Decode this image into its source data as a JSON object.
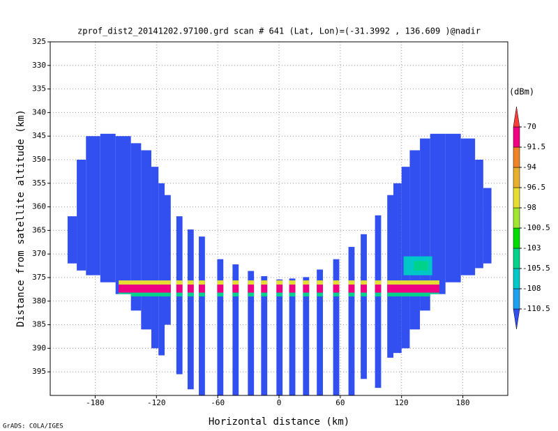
{
  "chart_data": {
    "type": "profile",
    "title": "zprof_dist2_20141202.97100.grd  scan # 641  (Lat, Lon)=(-31.3992 , 136.609 )@nadir",
    "xlabel": "Horizontal distance (km)",
    "ylabel": "Distance from satellite altitude (km)",
    "footer": "GrADS: COLA/IGES",
    "xlim": [
      -224,
      224
    ],
    "ylim": [
      325,
      400
    ],
    "xticks": [
      -180,
      -120,
      -60,
      0,
      60,
      120,
      180
    ],
    "yticks": [
      325,
      330,
      335,
      340,
      345,
      350,
      355,
      360,
      365,
      370,
      375,
      380,
      385,
      390,
      395
    ],
    "grid": true,
    "columns": [
      {
        "x": [
          -207,
          -198
        ],
        "y": [
          362,
          372
        ],
        "value": -112
      },
      {
        "x": [
          -198,
          -189
        ],
        "y": [
          350,
          373.5
        ],
        "value": -112
      },
      {
        "x": [
          -189,
          -175
        ],
        "y": [
          345,
          374.5
        ],
        "value": -112
      },
      {
        "x": [
          -175,
          -160
        ],
        "y": [
          344.5,
          376
        ],
        "value": -112
      },
      {
        "x": [
          -160,
          -145
        ],
        "y": [
          345,
          378.5
        ],
        "value": -112
      },
      {
        "x": [
          -145,
          -135
        ],
        "y": [
          346.5,
          382
        ],
        "value": -112
      },
      {
        "x": [
          -135,
          -125
        ],
        "y": [
          348,
          386
        ],
        "value": -112
      },
      {
        "x": [
          -125,
          -118
        ],
        "y": [
          351.5,
          390
        ],
        "value": -112
      },
      {
        "x": [
          -118,
          -112
        ],
        "y": [
          355,
          391.5
        ],
        "value": -112
      },
      {
        "x": [
          -112,
          -106
        ],
        "y": [
          357.5,
          385
        ],
        "value": -112
      },
      {
        "x": [
          -100.5,
          -94.5
        ],
        "y": [
          362,
          395.5
        ],
        "value": -112
      },
      {
        "x": [
          -89.5,
          -83.5
        ],
        "y": [
          364.8,
          398.7
        ],
        "value": -112
      },
      {
        "x": [
          -78.5,
          -72.5
        ],
        "y": [
          366.3,
          400
        ],
        "value": -112
      },
      {
        "x": [
          -60.5,
          -54.5
        ],
        "y": [
          371.1,
          400
        ],
        "value": -112
      },
      {
        "x": [
          -45.5,
          -39.5
        ],
        "y": [
          372.2,
          400
        ],
        "value": -112
      },
      {
        "x": [
          -30.5,
          -24.5
        ],
        "y": [
          373.6,
          400
        ],
        "value": -112
      },
      {
        "x": [
          -17.5,
          -11.5
        ],
        "y": [
          374.7,
          400
        ],
        "value": -112
      },
      {
        "x": [
          -2.5,
          3.5
        ],
        "y": [
          375.4,
          400
        ],
        "value": -112
      },
      {
        "x": [
          10,
          16
        ],
        "y": [
          375.2,
          400
        ],
        "value": -112
      },
      {
        "x": [
          23.5,
          29.5
        ],
        "y": [
          374.9,
          400
        ],
        "value": -112
      },
      {
        "x": [
          37,
          43
        ],
        "y": [
          373.3,
          400
        ],
        "value": -112
      },
      {
        "x": [
          53,
          59
        ],
        "y": [
          371.1,
          400
        ],
        "value": -112
      },
      {
        "x": [
          68,
          74
        ],
        "y": [
          368.5,
          400
        ],
        "value": -112
      },
      {
        "x": [
          80,
          86
        ],
        "y": [
          365.8,
          396.5
        ],
        "value": -112
      },
      {
        "x": [
          94,
          100
        ],
        "y": [
          361.8,
          398.4
        ],
        "value": -112
      },
      {
        "x": [
          106,
          112
        ],
        "y": [
          357.5,
          392
        ],
        "value": -112
      },
      {
        "x": [
          112,
          120
        ],
        "y": [
          355,
          391
        ],
        "value": -112
      },
      {
        "x": [
          120,
          128
        ],
        "y": [
          351.5,
          390
        ],
        "value": -112
      },
      {
        "x": [
          128,
          138
        ],
        "y": [
          348,
          386
        ],
        "value": -112
      },
      {
        "x": [
          138,
          148
        ],
        "y": [
          345.5,
          382
        ],
        "value": -112
      },
      {
        "x": [
          148,
          163
        ],
        "y": [
          344.5,
          378.5
        ],
        "value": -112
      },
      {
        "x": [
          163,
          178
        ],
        "y": [
          344.5,
          376
        ],
        "value": -112
      },
      {
        "x": [
          178,
          192
        ],
        "y": [
          345.5,
          374.5
        ],
        "value": -112
      },
      {
        "x": [
          192,
          200
        ],
        "y": [
          350,
          373
        ],
        "value": -112
      },
      {
        "x": [
          200,
          208
        ],
        "y": [
          356,
          372
        ],
        "value": -112
      }
    ],
    "layers": [
      {
        "x": [
          -157,
          157
        ],
        "y": [
          375.6,
          376.5
        ],
        "value": -97
      },
      {
        "x": [
          -157,
          157
        ],
        "y": [
          376.5,
          378.2
        ],
        "value": -80
      },
      {
        "x": [
          -157,
          157
        ],
        "y": [
          378.2,
          379
        ],
        "value": -104
      },
      {
        "x": [
          122,
          150
        ],
        "y": [
          370.5,
          374.5
        ],
        "value": -107
      },
      {
        "x": [
          132,
          146
        ],
        "y": [
          371.5,
          373.5
        ],
        "value": -104.5
      }
    ],
    "colorbar": {
      "title": "(dBm)",
      "levels": [
        -110.5,
        -108,
        -105.5,
        -103,
        -100.5,
        -98,
        -96.5,
        -94,
        -91.5,
        -70
      ],
      "colors": [
        "#3250f0",
        "#1ea0f0",
        "#00c8c8",
        "#00d28c",
        "#00dc00",
        "#a0e632",
        "#e6dc32",
        "#e6af2d",
        "#f08228",
        "#f00082",
        "#fa3c3c"
      ]
    }
  }
}
